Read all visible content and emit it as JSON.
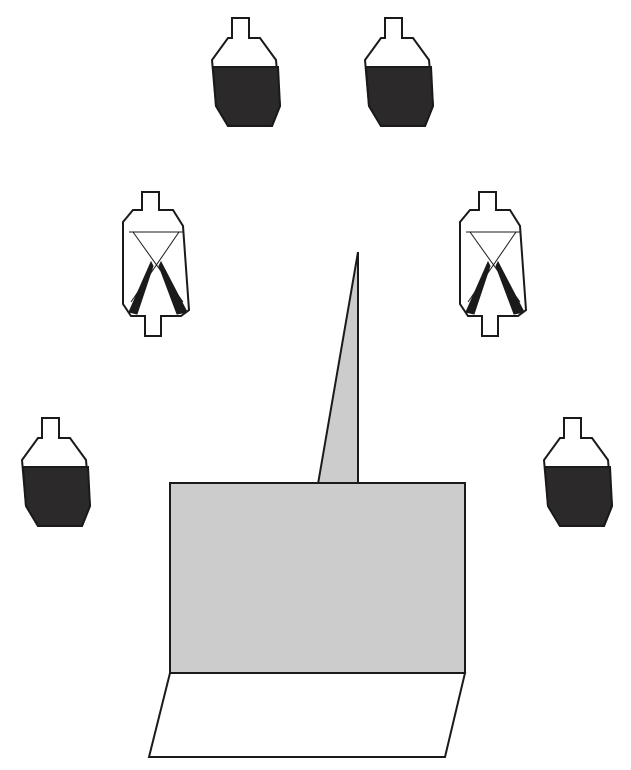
{
  "colors": {
    "background": "#ffffff",
    "outline": "#1a1a1a",
    "figure_fill": "#2b2929",
    "table_fill": "#cccccc"
  },
  "figures": [
    {
      "id": "standing-figure-top-left",
      "kind": "standing-target"
    },
    {
      "id": "standing-figure-top-right",
      "kind": "standing-target"
    },
    {
      "id": "crossed-figure-middle-left",
      "kind": "crossed-target"
    },
    {
      "id": "crossed-figure-middle-right",
      "kind": "crossed-target"
    },
    {
      "id": "standing-figure-bottom-left",
      "kind": "standing-target"
    },
    {
      "id": "standing-figure-bottom-right",
      "kind": "standing-target"
    }
  ],
  "objects": [
    {
      "id": "grey-table",
      "kind": "rectangle"
    },
    {
      "id": "grey-spike",
      "kind": "triangle"
    },
    {
      "id": "floor-panel",
      "kind": "parallelogram"
    }
  ]
}
